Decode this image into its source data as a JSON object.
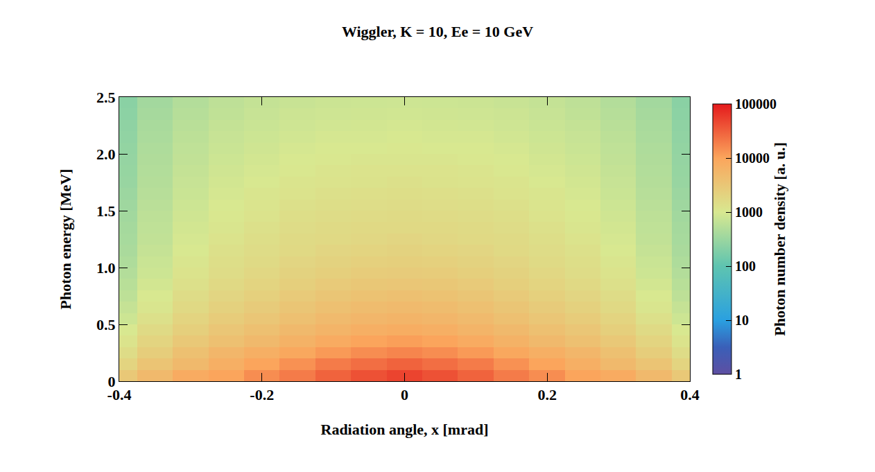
{
  "chart_data": {
    "type": "heatmap",
    "title": "Wiggler, K = 10, Ee = 10 GeV",
    "x_label": "Radiation angle, x [mrad]",
    "y_label": "Photon energy [MeV]",
    "colorbar_label": "Photon number density [a. u.]",
    "x": [
      -0.4,
      -0.35,
      -0.3,
      -0.25,
      -0.2,
      -0.15,
      -0.1,
      -0.05,
      0,
      0.05,
      0.1,
      0.15,
      0.2,
      0.25,
      0.3,
      0.35,
      0.4
    ],
    "y": [
      0.05,
      0.15,
      0.25,
      0.35,
      0.45,
      0.55,
      0.65,
      0.75,
      0.85,
      0.95,
      1.05,
      1.15,
      1.25,
      1.35,
      1.45,
      1.55,
      1.65,
      1.75,
      1.85,
      1.95,
      2.05,
      2.15,
      2.25,
      2.35,
      2.45
    ],
    "z": [
      [
        3000,
        5000,
        8000,
        10000,
        15000,
        20000,
        30000,
        40000,
        50000,
        40000,
        30000,
        20000,
        15000,
        10000,
        8000,
        5000,
        3000
      ],
      [
        2000,
        3500,
        5000,
        7000,
        10000,
        14000,
        20000,
        25000,
        30000,
        25000,
        20000,
        14000,
        10000,
        7000,
        5000,
        3500,
        2000
      ],
      [
        1500,
        2500,
        4000,
        5500,
        7000,
        9000,
        12000,
        15000,
        17000,
        15000,
        12000,
        9000,
        7000,
        5500,
        4000,
        2500,
        1500
      ],
      [
        1200,
        2000,
        3000,
        4000,
        5000,
        6500,
        8000,
        10000,
        11000,
        10000,
        8000,
        6500,
        5000,
        4000,
        3000,
        2000,
        1200
      ],
      [
        1000,
        1600,
        2400,
        3200,
        4000,
        5000,
        6000,
        7000,
        7500,
        7000,
        6000,
        5000,
        4000,
        3200,
        2400,
        1600,
        1000
      ],
      [
        800,
        1300,
        2000,
        2600,
        3200,
        4000,
        4800,
        5500,
        6000,
        5500,
        4800,
        4000,
        3200,
        2600,
        2000,
        1300,
        800
      ],
      [
        700,
        1100,
        1700,
        2200,
        2700,
        3300,
        4000,
        4500,
        4800,
        4500,
        4000,
        3300,
        2700,
        2200,
        1700,
        1100,
        700
      ],
      [
        600,
        1000,
        1500,
        1900,
        2300,
        2800,
        3300,
        3700,
        3900,
        3700,
        3300,
        2800,
        2300,
        1900,
        1500,
        1000,
        600
      ],
      [
        550,
        900,
        1300,
        1700,
        2000,
        2400,
        2800,
        3100,
        3200,
        3100,
        2800,
        2400,
        2000,
        1700,
        1300,
        900,
        550
      ],
      [
        500,
        800,
        1200,
        1500,
        1800,
        2100,
        2400,
        2600,
        2700,
        2600,
        2400,
        2100,
        1800,
        1500,
        1200,
        800,
        500
      ],
      [
        450,
        750,
        1100,
        1400,
        1600,
        1900,
        2100,
        2300,
        2400,
        2300,
        2100,
        1900,
        1600,
        1400,
        1100,
        750,
        450
      ],
      [
        420,
        700,
        1000,
        1300,
        1500,
        1700,
        1900,
        2000,
        2100,
        2000,
        1900,
        1700,
        1500,
        1300,
        1000,
        700,
        420
      ],
      [
        400,
        650,
        950,
        1200,
        1400,
        1600,
        1700,
        1800,
        1900,
        1800,
        1700,
        1600,
        1400,
        1200,
        950,
        650,
        400
      ],
      [
        380,
        620,
        900,
        1100,
        1300,
        1500,
        1600,
        1700,
        1700,
        1700,
        1600,
        1500,
        1300,
        1100,
        900,
        620,
        380
      ],
      [
        360,
        600,
        850,
        1050,
        1200,
        1400,
        1500,
        1550,
        1600,
        1550,
        1500,
        1400,
        1200,
        1050,
        850,
        600,
        360
      ],
      [
        340,
        570,
        800,
        1000,
        1150,
        1300,
        1400,
        1450,
        1500,
        1450,
        1400,
        1300,
        1150,
        1000,
        800,
        570,
        340
      ],
      [
        320,
        540,
        760,
        950,
        1100,
        1200,
        1300,
        1350,
        1400,
        1350,
        1300,
        1200,
        1100,
        950,
        760,
        540,
        320
      ],
      [
        300,
        510,
        720,
        900,
        1000,
        1150,
        1200,
        1250,
        1300,
        1250,
        1200,
        1150,
        1000,
        900,
        720,
        510,
        300
      ],
      [
        290,
        490,
        690,
        850,
        950,
        1050,
        1150,
        1200,
        1200,
        1200,
        1150,
        1050,
        950,
        850,
        690,
        490,
        290
      ],
      [
        280,
        470,
        650,
        800,
        900,
        1000,
        1050,
        1100,
        1100,
        1100,
        1050,
        1000,
        900,
        800,
        650,
        470,
        280
      ],
      [
        270,
        450,
        620,
        760,
        850,
        950,
        1000,
        1000,
        1050,
        1000,
        1000,
        950,
        850,
        760,
        620,
        450,
        270
      ],
      [
        260,
        430,
        590,
        720,
        800,
        880,
        940,
        950,
        980,
        950,
        940,
        880,
        800,
        720,
        590,
        430,
        260
      ],
      [
        250,
        410,
        560,
        680,
        760,
        830,
        880,
        900,
        920,
        900,
        880,
        830,
        760,
        680,
        560,
        410,
        250
      ],
      [
        240,
        390,
        530,
        640,
        720,
        790,
        830,
        850,
        860,
        850,
        830,
        790,
        720,
        640,
        530,
        390,
        240
      ],
      [
        230,
        370,
        500,
        610,
        680,
        740,
        780,
        800,
        810,
        800,
        780,
        740,
        680,
        610,
        500,
        370,
        230
      ]
    ],
    "xlim": [
      -0.4,
      0.4
    ],
    "xticks": [
      -0.4,
      -0.2,
      0,
      0.2,
      0.4
    ],
    "ylim": [
      0,
      2.5
    ],
    "yticks": [
      0,
      0.5,
      {
        "value": 1,
        "label": "1.0"
      },
      1.5,
      {
        "value": 2,
        "label": "2.0"
      },
      2.5
    ],
    "colorbar_range": [
      1,
      100000
    ],
    "colorbar_ticks": [
      1,
      10,
      100,
      1000,
      10000,
      100000
    ]
  }
}
